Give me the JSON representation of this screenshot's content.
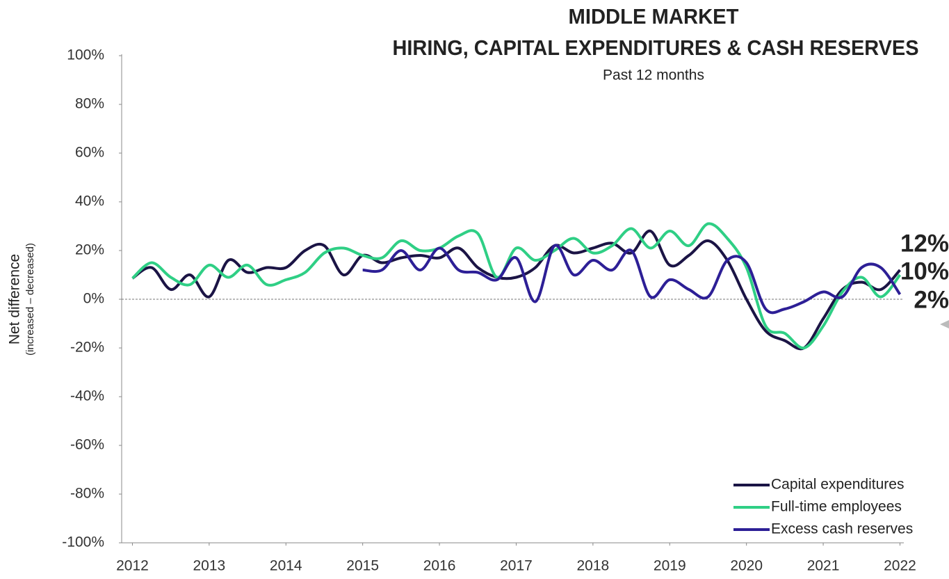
{
  "chart_data": {
    "type": "line",
    "title": [
      "MIDDLE MARKET",
      "HIRING, CAPITAL EXPENDITURES & CASH RESERVES"
    ],
    "subtitle": "Past 12 months",
    "ylabel": [
      "Net difference",
      "(increased – decreased)"
    ],
    "x": [
      2012,
      2012.25,
      2012.5,
      2012.75,
      2013,
      2013.25,
      2013.5,
      2013.75,
      2014,
      2014.25,
      2014.5,
      2014.75,
      2015,
      2015.25,
      2015.5,
      2015.75,
      2016,
      2016.25,
      2016.5,
      2016.75,
      2017,
      2017.25,
      2017.5,
      2017.75,
      2018,
      2018.25,
      2018.5,
      2018.75,
      2019,
      2019.25,
      2019.5,
      2019.75,
      2020,
      2020.25,
      2020.5,
      2020.75,
      2021,
      2021.25,
      2021.5,
      2021.75,
      2022
    ],
    "series": [
      {
        "name": "Capital expenditures",
        "color": "#1b1445",
        "values": [
          8.6,
          13,
          4,
          10,
          1,
          16,
          11,
          13,
          13,
          20,
          22,
          10,
          18,
          15,
          17,
          18,
          17,
          21,
          13,
          9,
          9,
          13,
          22,
          19,
          21,
          23,
          19,
          28,
          14,
          18,
          24,
          16,
          0,
          -13,
          -17,
          -20,
          -8,
          4,
          7,
          4,
          12
        ],
        "value_labels": [
          null,
          null,
          null,
          null,
          null,
          null,
          null,
          null,
          null,
          null,
          null,
          null,
          null,
          null,
          null,
          null,
          null,
          null,
          null,
          null,
          null,
          null,
          null,
          null,
          null,
          null,
          null,
          null,
          null,
          null,
          null,
          null,
          null,
          null,
          null,
          null,
          null,
          null,
          null,
          null,
          "12%"
        ]
      },
      {
        "name": "Full-time employees",
        "color": "#2fcf85",
        "values": [
          8.6,
          15,
          9,
          6,
          14,
          9,
          14,
          6,
          8,
          11,
          19,
          21,
          18,
          17,
          24,
          20,
          21,
          26,
          27,
          9,
          21,
          16,
          20,
          25,
          19,
          22,
          29,
          21,
          28,
          22,
          31,
          25,
          13,
          -11,
          -14,
          -20,
          -11,
          3,
          9,
          1,
          10
        ],
        "value_labels": [
          null,
          null,
          null,
          null,
          null,
          null,
          null,
          null,
          null,
          null,
          null,
          null,
          null,
          null,
          null,
          null,
          null,
          null,
          null,
          null,
          null,
          null,
          null,
          null,
          null,
          null,
          null,
          null,
          null,
          null,
          null,
          null,
          null,
          null,
          null,
          null,
          null,
          null,
          null,
          null,
          "10%"
        ]
      },
      {
        "name": "Excess cash reserves",
        "color": "#2d1f96",
        "values": [
          null,
          null,
          null,
          null,
          null,
          null,
          null,
          null,
          null,
          null,
          null,
          null,
          12,
          12,
          20,
          12,
          21,
          12,
          11,
          8,
          17,
          -1,
          22,
          10,
          16,
          12,
          20,
          1,
          8,
          4,
          1,
          16,
          15,
          -4,
          -4,
          -1,
          3,
          1,
          13,
          13,
          2
        ],
        "value_labels": [
          null,
          null,
          null,
          null,
          null,
          null,
          null,
          null,
          null,
          null,
          null,
          null,
          null,
          null,
          null,
          null,
          null,
          null,
          null,
          null,
          null,
          null,
          null,
          null,
          null,
          null,
          null,
          null,
          null,
          null,
          null,
          null,
          null,
          null,
          null,
          null,
          null,
          null,
          null,
          null,
          "2%"
        ]
      }
    ],
    "xlim": [
      2011.86,
      2022.05
    ],
    "xticks": [
      2012,
      2013,
      2014,
      2015,
      2016,
      2017,
      2018,
      2019,
      2020,
      2021,
      2022
    ],
    "ylim": [
      -100,
      100
    ],
    "yticks": [
      {
        "value": -100,
        "label": "-100%"
      },
      {
        "value": -80,
        "label": "-80%"
      },
      {
        "value": -60,
        "label": "-60%"
      },
      {
        "value": -40,
        "label": "-40%"
      },
      {
        "value": -20,
        "label": "-20%"
      },
      {
        "value": 0,
        "label": "0%"
      },
      {
        "value": 20,
        "label": "20%"
      },
      {
        "value": 40,
        "label": "40%"
      },
      {
        "value": 60,
        "label": "60%"
      },
      {
        "value": 80,
        "label": "80%"
      },
      {
        "value": 100,
        "label": "100%"
      }
    ],
    "legend": "lower right"
  }
}
